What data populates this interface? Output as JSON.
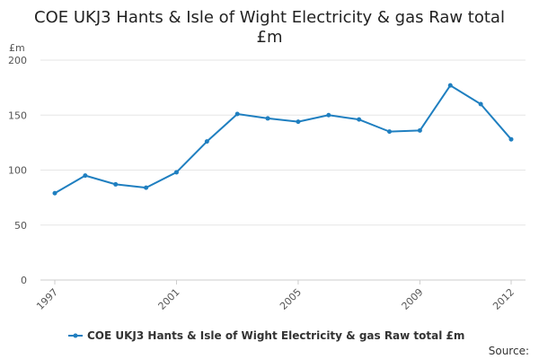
{
  "chart_data": {
    "type": "line",
    "title_lines": [
      "COE UKJ3 Hants & Isle of Wight Electricity & gas Raw total",
      "£m"
    ],
    "ylabel": "£m",
    "xlabel": "",
    "x": [
      1997,
      1998,
      1999,
      2000,
      2001,
      2002,
      2003,
      2004,
      2005,
      2006,
      2007,
      2008,
      2009,
      2010,
      2011,
      2012
    ],
    "x_ticks": [
      1997,
      2001,
      2005,
      2009,
      2012
    ],
    "y_ticks": [
      0,
      50,
      100,
      150,
      200
    ],
    "ylim": [
      0,
      200
    ],
    "grid": true,
    "legend_position": "bottom",
    "series": [
      {
        "name": "COE UKJ3 Hants & Isle of Wight Electricity & gas Raw total £m",
        "color": "#1f7fc0",
        "values": [
          79,
          95,
          87,
          84,
          98,
          126,
          151,
          147,
          144,
          150,
          146,
          135,
          136,
          177,
          160,
          128
        ]
      }
    ],
    "source_label": "Source:"
  }
}
